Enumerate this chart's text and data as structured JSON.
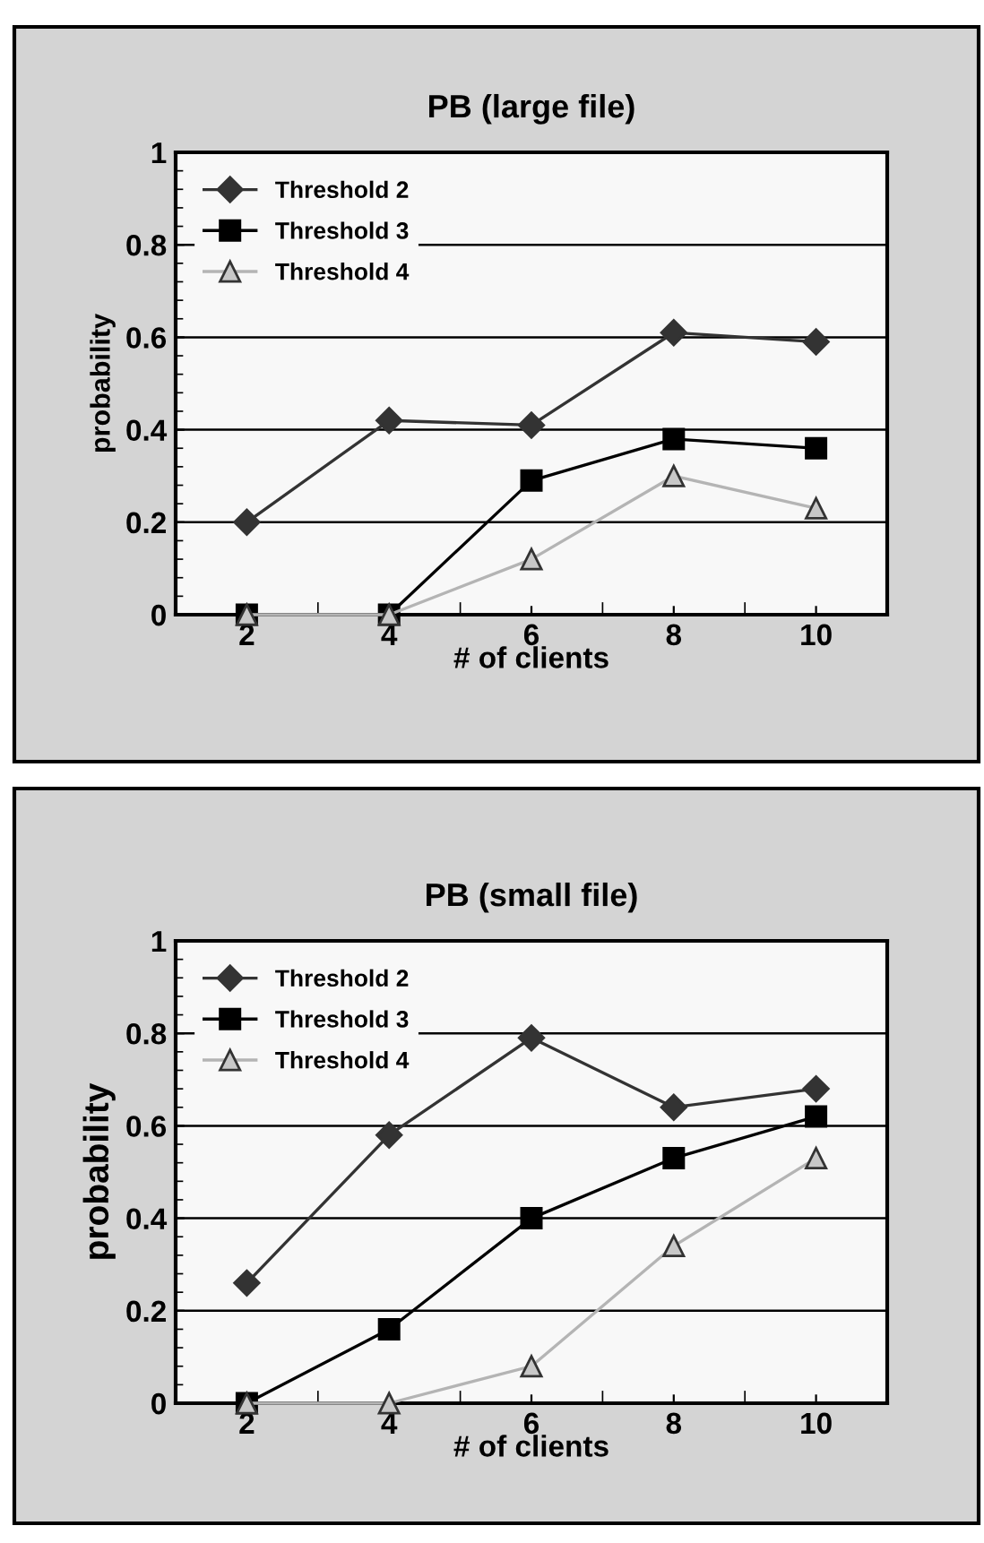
{
  "chart_data": [
    {
      "type": "line",
      "title": "PB (large file)",
      "xlabel": "# of clients",
      "ylabel": "probability",
      "categories": [
        "2",
        "4",
        "6",
        "8",
        "10"
      ],
      "ylim": [
        0,
        1
      ],
      "yticks": [
        0,
        0.2,
        0.4,
        0.6,
        0.8,
        1
      ],
      "grid": "y",
      "legend": "top left",
      "series": [
        {
          "name": "Threshold 2",
          "color": "#333333",
          "marker": "diamond",
          "values": [
            0.2,
            0.42,
            0.41,
            0.61,
            0.59
          ]
        },
        {
          "name": "Threshold 3",
          "color": "#000000",
          "marker": "square",
          "values": [
            0,
            0,
            0.29,
            0.38,
            0.36
          ]
        },
        {
          "name": "Threshold 4",
          "color": "#b4b4b4",
          "marker": "triangle",
          "values": [
            0,
            0,
            0.12,
            0.3,
            0.23
          ]
        }
      ]
    },
    {
      "type": "line",
      "title": "PB (small file)",
      "xlabel": "# of clients",
      "ylabel": "probability",
      "categories": [
        "2",
        "4",
        "6",
        "8",
        "10"
      ],
      "ylim": [
        0,
        1
      ],
      "yticks": [
        0,
        0.2,
        0.4,
        0.6,
        0.8,
        1
      ],
      "grid": "y",
      "legend": "top left",
      "series": [
        {
          "name": "Threshold 2",
          "color": "#333333",
          "marker": "diamond",
          "values": [
            0.26,
            0.58,
            0.79,
            0.64,
            0.68
          ]
        },
        {
          "name": "Threshold 3",
          "color": "#000000",
          "marker": "square",
          "values": [
            0,
            0.16,
            0.4,
            0.53,
            0.62
          ]
        },
        {
          "name": "Threshold 4",
          "color": "#b4b4b4",
          "marker": "triangle",
          "values": [
            0,
            0,
            0.08,
            0.34,
            0.53
          ]
        }
      ]
    }
  ]
}
